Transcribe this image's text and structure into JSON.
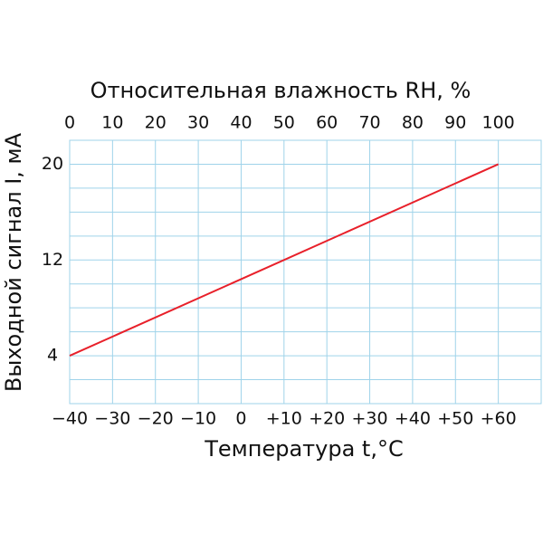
{
  "chart_data": {
    "type": "line",
    "title": "Относительная влажность RH, %",
    "x_label": "Температура t,°C",
    "y_label": "Выходной сигнал I, мА",
    "x": [
      -40,
      60
    ],
    "series": [
      {
        "name": null,
        "color": "#e8202a",
        "values": [
          4,
          20
        ]
      }
    ],
    "xlim": [
      -40,
      70
    ],
    "xticks": [
      {
        "value": -40,
        "label": "−40"
      },
      {
        "value": -30,
        "label": "−30"
      },
      {
        "value": -20,
        "label": "−20"
      },
      {
        "value": -10,
        "label": "−10"
      },
      0,
      {
        "value": 10,
        "label": "+10"
      },
      {
        "value": 20,
        "label": "+20"
      },
      {
        "value": 30,
        "label": "+30"
      },
      {
        "value": 40,
        "label": "+40"
      },
      {
        "value": 50,
        "label": "+50"
      },
      {
        "value": 60,
        "label": "+60"
      }
    ],
    "x2lim": [
      0,
      110
    ],
    "x2ticks": [
      0,
      10,
      20,
      30,
      40,
      50,
      60,
      70,
      80,
      90,
      100
    ],
    "ylim": [
      0,
      22
    ],
    "yticks": [
      4,
      12,
      20
    ],
    "ygrid": [
      0,
      2,
      4,
      6,
      8,
      10,
      12,
      14,
      16,
      18,
      20,
      22
    ],
    "grid": true,
    "grid_color": "#9fd3ea"
  }
}
